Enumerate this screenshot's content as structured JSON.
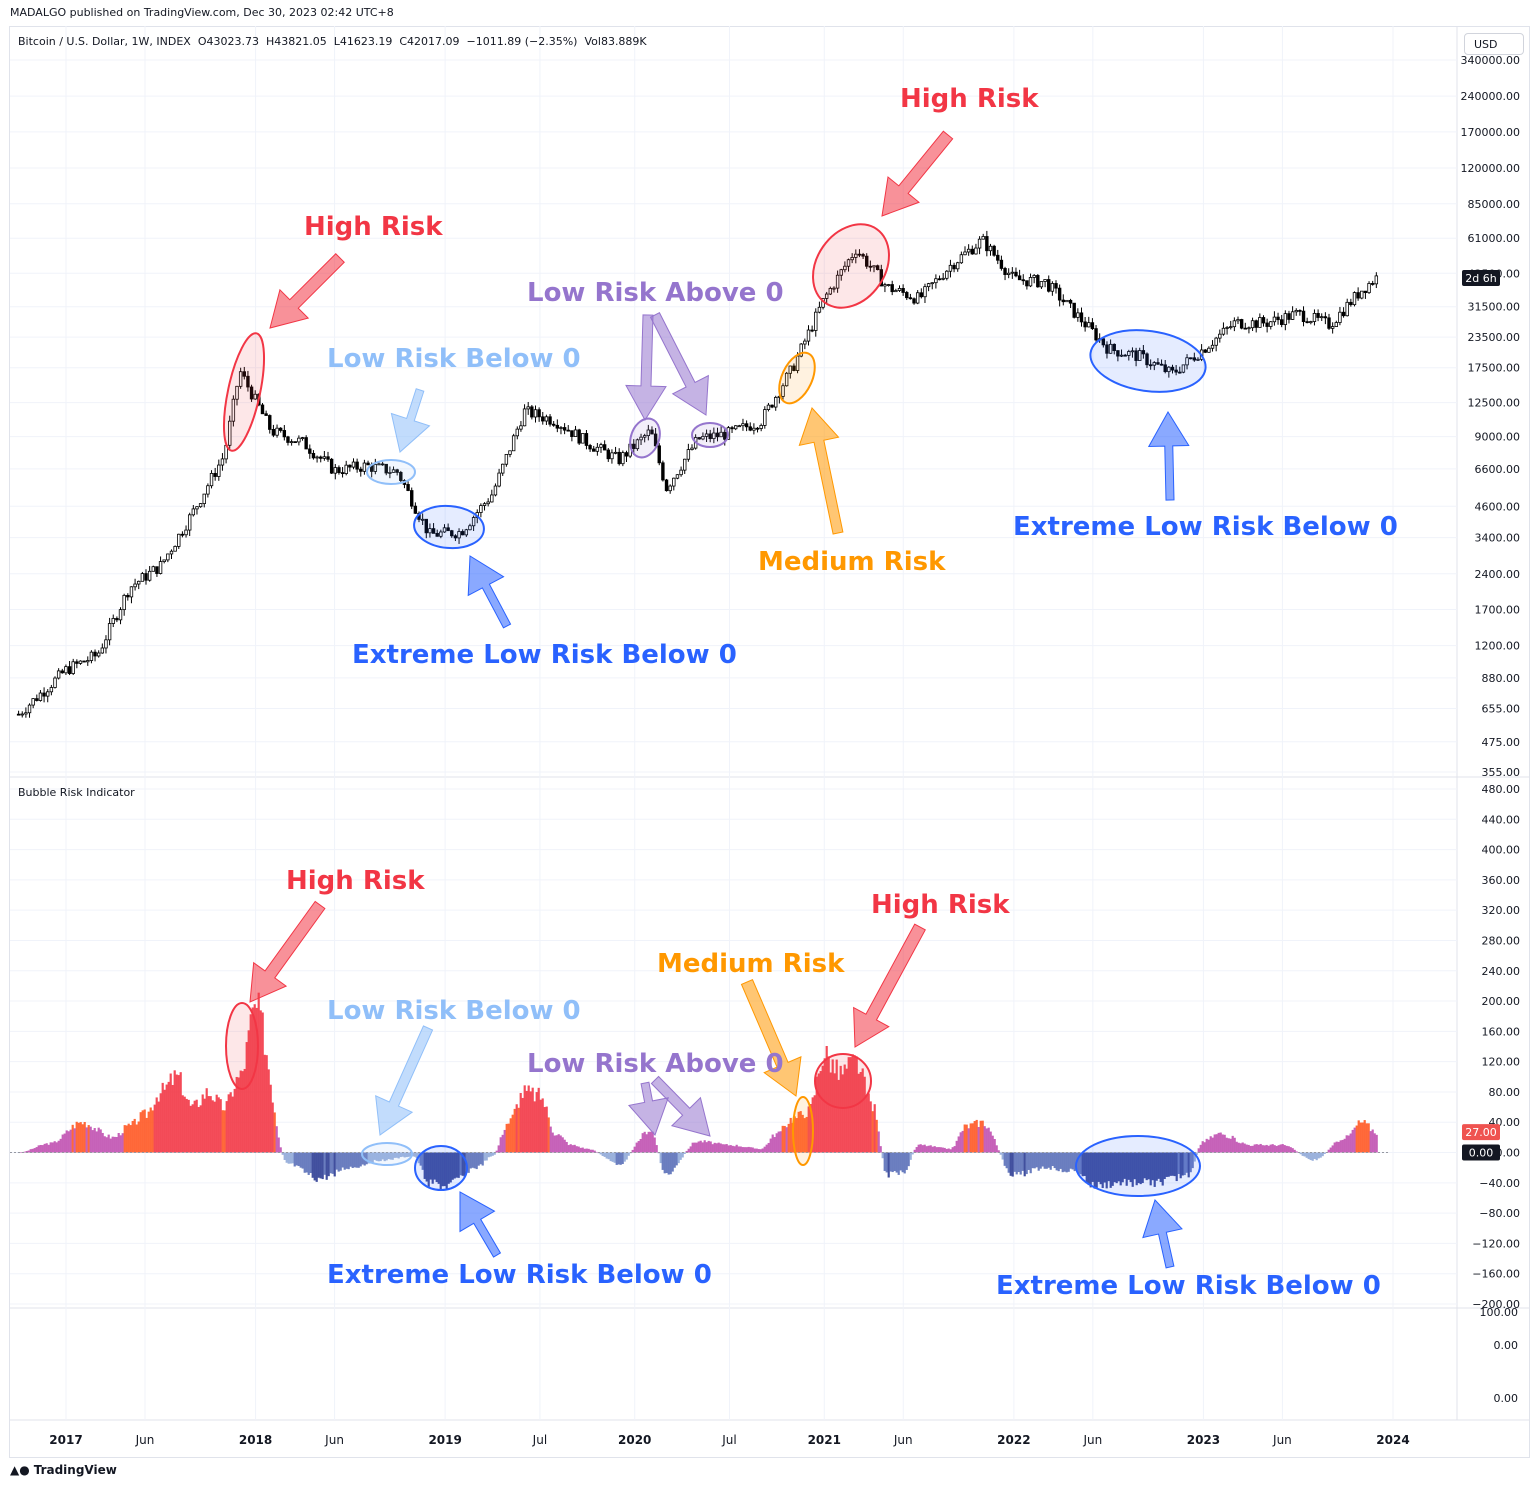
{
  "header": {
    "publisher": "MADALGO published on TradingView.com, Dec 30, 2023 02:42 UTC+8"
  },
  "symbol": {
    "name": "Bitcoin / U.S. Dollar, 1W, INDEX",
    "open": "O43023.73",
    "high": "H43821.05",
    "low": "L41623.19",
    "close": "C42017.09",
    "change": "−1011.89 (−2.35%)",
    "volume": "Vol83.889K"
  },
  "currency_button": "USD",
  "countdown_badge": "2d 6h",
  "indicator_title": "Bubble Risk Indicator",
  "footer": {
    "brand": "TradingView"
  },
  "colors": {
    "high_risk": "#f23645",
    "low_risk_below_0": "#90bff9",
    "low_risk_above_0": "#9575cd",
    "medium_risk": "#ff9800",
    "extreme_low_risk": "#2962ff",
    "badge_value": "#ef5350"
  },
  "chart_data": [
    {
      "type": "candlestick",
      "title": "Bitcoin / U.S. Dollar, 1W, INDEX",
      "yscale": "log",
      "y_ticks": [
        "340000.00",
        "240000.00",
        "170000.00",
        "120000.00",
        "85000.00",
        "61000.00",
        "43500.00",
        "31500.00",
        "23500.00",
        "17500.00",
        "12500.00",
        "9000.00",
        "6600.00",
        "4600.00",
        "3400.00",
        "2400.00",
        "1700.00",
        "1200.00",
        "880.00",
        "655.00",
        "475.00",
        "355.00"
      ],
      "x_ticks": [
        "2017",
        "Jun",
        "2018",
        "Jun",
        "2019",
        "Jul",
        "2020",
        "Jul",
        "2021",
        "Jun",
        "2022",
        "Jun",
        "2023",
        "Jun",
        "2024"
      ],
      "x": [
        "2016-10",
        "2017-01",
        "2017-03",
        "2017-05",
        "2017-07",
        "2017-09",
        "2017-11",
        "2017-12",
        "2018-02",
        "2018-04",
        "2018-06",
        "2018-08",
        "2018-10",
        "2018-12",
        "2019-02",
        "2019-04",
        "2019-06",
        "2019-08",
        "2019-10",
        "2019-12",
        "2020-02",
        "2020-03",
        "2020-05",
        "2020-07",
        "2020-09",
        "2020-11",
        "2021-01",
        "2021-03",
        "2021-05",
        "2021-07",
        "2021-09",
        "2021-11",
        "2022-01",
        "2022-03",
        "2022-05",
        "2022-07",
        "2022-09",
        "2022-11",
        "2023-01",
        "2023-03",
        "2023-05",
        "2023-07",
        "2023-09",
        "2023-11",
        "2023-12"
      ],
      "y": [
        620,
        950,
        1100,
        2100,
        2600,
        4300,
        7500,
        17000,
        9500,
        8500,
        6500,
        6800,
        6400,
        3500,
        3600,
        5200,
        11500,
        10500,
        8500,
        7200,
        9500,
        5500,
        8800,
        9300,
        10500,
        17500,
        34000,
        55000,
        38000,
        34000,
        47000,
        60000,
        41000,
        40000,
        29000,
        21000,
        19500,
        16500,
        21000,
        27000,
        27000,
        29500,
        26500,
        37000,
        42017
      ],
      "annotations": [
        "High Risk",
        "Low Risk Below 0",
        "Extreme Low Risk Below 0",
        "Low Risk Above 0",
        "Medium Risk",
        "High Risk",
        "Extreme Low Risk Below 0"
      ]
    },
    {
      "type": "area",
      "title": "Bubble Risk Indicator",
      "y_ticks": [
        "480.00",
        "440.00",
        "400.00",
        "360.00",
        "320.00",
        "280.00",
        "240.00",
        "200.00",
        "160.00",
        "120.00",
        "80.00",
        "40.00",
        "0.00",
        "−40.00",
        "−80.00",
        "−120.00",
        "−160.00",
        "−200.00"
      ],
      "value_badge": "27.00",
      "zero_badge": "0.00",
      "x": [
        "2016-10",
        "2016-12",
        "2017-02",
        "2017-04",
        "2017-05",
        "2017-06",
        "2017-07",
        "2017-08",
        "2017-09",
        "2017-10",
        "2017-11",
        "2017-12",
        "2018-01",
        "2018-03",
        "2018-05",
        "2018-07",
        "2018-09",
        "2018-11",
        "2018-12",
        "2019-01",
        "2019-03",
        "2019-04",
        "2019-05",
        "2019-06",
        "2019-07",
        "2019-08",
        "2019-09",
        "2019-10",
        "2019-12",
        "2020-02",
        "2020-03",
        "2020-05",
        "2020-07",
        "2020-09",
        "2020-10",
        "2020-11",
        "2020-12",
        "2021-01",
        "2021-02",
        "2021-03",
        "2021-04",
        "2021-05",
        "2021-06",
        "2021-07",
        "2021-09",
        "2021-10",
        "2021-11",
        "2022-01",
        "2022-03",
        "2022-05",
        "2022-06",
        "2022-08",
        "2022-10",
        "2022-12",
        "2023-01",
        "2023-02",
        "2023-04",
        "2023-06",
        "2023-08",
        "2023-10",
        "2023-11",
        "2023-12"
      ],
      "y": [
        0,
        12,
        40,
        20,
        35,
        50,
        80,
        100,
        60,
        80,
        60,
        100,
        190,
        -15,
        -35,
        -20,
        -10,
        -5,
        -40,
        -45,
        -20,
        -5,
        40,
        80,
        75,
        25,
        10,
        5,
        -15,
        30,
        -30,
        15,
        10,
        5,
        25,
        45,
        55,
        130,
        105,
        120,
        65,
        -30,
        -25,
        10,
        5,
        35,
        40,
        -30,
        -20,
        -25,
        -45,
        -40,
        -40,
        -30,
        15,
        25,
        10,
        10,
        -10,
        20,
        40,
        27
      ],
      "annotations": [
        "High Risk",
        "Low Risk Below 0",
        "Extreme Low Risk Below 0",
        "Low Risk Above 0",
        "Medium Risk",
        "High Risk",
        "Extreme Low Risk Below 0"
      ]
    },
    {
      "type": "line",
      "title": "",
      "y_ticks": [
        "100.00",
        "0.00",
        "0.00"
      ]
    }
  ],
  "annotations": {
    "top_high_risk_1": "High Risk",
    "top_high_risk_2": "High Risk",
    "top_low_risk_below": "Low Risk Below 0",
    "top_low_risk_above": "Low Risk Above 0",
    "top_medium_risk": "Medium Risk",
    "top_extreme_1": "Extreme Low Risk Below 0",
    "top_extreme_2": "Extreme Low Risk Below 0",
    "bot_high_risk_1": "High Risk",
    "bot_high_risk_2": "High Risk",
    "bot_low_risk_below": "Low Risk Below 0",
    "bot_low_risk_above": "Low Risk Above 0",
    "bot_medium_risk": "Medium Risk",
    "bot_extreme_1": "Extreme Low Risk Below 0",
    "bot_extreme_2": "Extreme Low Risk Below 0"
  }
}
